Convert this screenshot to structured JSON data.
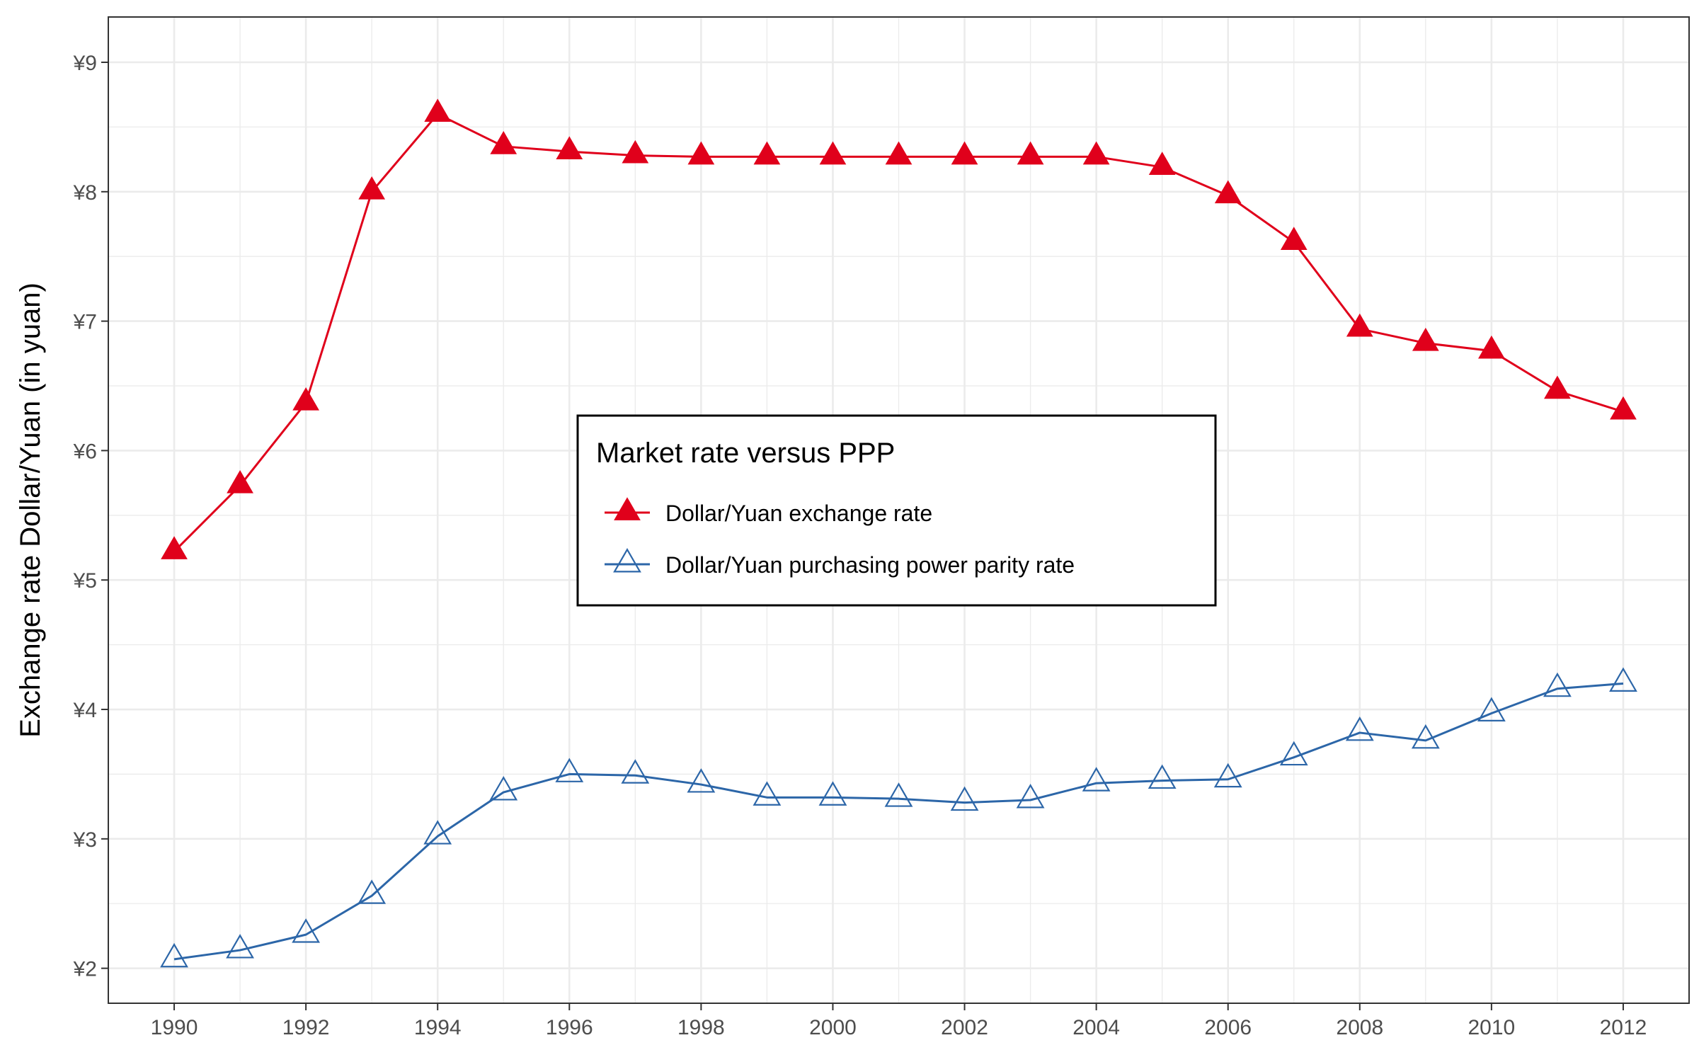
{
  "chart_data": {
    "type": "line",
    "title": "",
    "xlabel": "",
    "ylabel": "Exchange rate Dollar/Yuan (in yuan)",
    "x": [
      1990,
      1991,
      1992,
      1993,
      1994,
      1995,
      1996,
      1997,
      1998,
      1999,
      2000,
      2001,
      2002,
      2003,
      2004,
      2005,
      2006,
      2007,
      2008,
      2009,
      2010,
      2011,
      2012
    ],
    "x_ticks": [
      "1990",
      "1992",
      "1994",
      "1996",
      "1998",
      "2000",
      "2002",
      "2004",
      "2006",
      "2008",
      "2010",
      "2012"
    ],
    "y_ticks": [
      "¥2",
      "¥3",
      "¥4",
      "¥5",
      "¥6",
      "¥7",
      "¥8",
      "¥9"
    ],
    "xlim": [
      1989,
      2013
    ],
    "ylim": [
      1.73,
      9.35
    ],
    "grid": true,
    "legend": {
      "title": "Market rate versus PPP",
      "placement": "center"
    },
    "series": [
      {
        "name": "Dollar/Yuan exchange rate",
        "color": "#e0001b",
        "marker": "filled-triangle",
        "values": [
          5.22,
          5.73,
          6.37,
          8.0,
          8.6,
          8.35,
          8.31,
          8.28,
          8.27,
          8.27,
          8.27,
          8.27,
          8.27,
          8.27,
          8.27,
          8.19,
          7.97,
          7.61,
          6.94,
          6.83,
          6.77,
          6.46,
          6.3
        ]
      },
      {
        "name": "Dollar/Yuan purchasing power parity rate",
        "color": "#2c66a8",
        "marker": "open-triangle",
        "values": [
          2.07,
          2.14,
          2.26,
          2.56,
          3.02,
          3.36,
          3.5,
          3.49,
          3.42,
          3.32,
          3.32,
          3.31,
          3.28,
          3.3,
          3.43,
          3.45,
          3.46,
          3.63,
          3.82,
          3.76,
          3.97,
          4.16,
          4.2
        ]
      }
    ]
  }
}
